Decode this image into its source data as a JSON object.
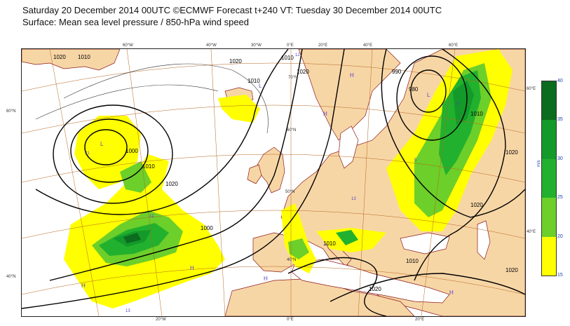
{
  "header": {
    "line1": "Saturday 20 December 2014 00UTC ©ECMWF Forecast t+240 VT: Tuesday 30 December 2014 00UTC",
    "line2": "Surface: Mean sea level pressure / 850-hPa wind speed"
  },
  "map": {
    "top_lon_labels": [
      "60°W",
      "40°W",
      "30°W",
      "0°E",
      "20°E",
      "40°E",
      "60°E"
    ],
    "bottom_lon_labels": [
      "20°W",
      "0°E",
      "20°E"
    ],
    "left_lat_labels": [
      "60°N",
      "40°N"
    ],
    "right_lat_labels": [
      "60°E",
      "40°E"
    ],
    "interior_lat_labels": [
      "70°N",
      "60°N",
      "50°N",
      "40°N"
    ],
    "isobar_labels": [
      "1020",
      "1010",
      "1020",
      "1010",
      "1000",
      "1010",
      "1020",
      "1000",
      "1010",
      "1020",
      "990",
      "980",
      "1010",
      "1020",
      "1010",
      "1020",
      "1020",
      "1010",
      "1020"
    ],
    "pressure_centres": [
      "L",
      "L",
      "L",
      "H",
      "H",
      "H",
      "H",
      "H",
      "H"
    ],
    "small_values": [
      "13",
      "12",
      "21",
      "12",
      "5",
      "9",
      "13"
    ]
  },
  "legend": {
    "unit": "m/s",
    "ticks": [
      "40",
      "35",
      "30",
      "25",
      "20",
      "15"
    ],
    "colors": [
      "#0b6b1e",
      "#139a2a",
      "#22b12e",
      "#6dcf2a",
      "#ffff00"
    ]
  },
  "colors": {
    "land": "#f7d6a6",
    "coast": "#8b1a1a",
    "isobar": "#000000",
    "graticule": "#b5651d",
    "wind_15": "#ffff00",
    "wind_20": "#6dcf2a",
    "wind_25": "#22b12e",
    "wind_30": "#139a2a",
    "wind_35": "#0b6b1e"
  }
}
